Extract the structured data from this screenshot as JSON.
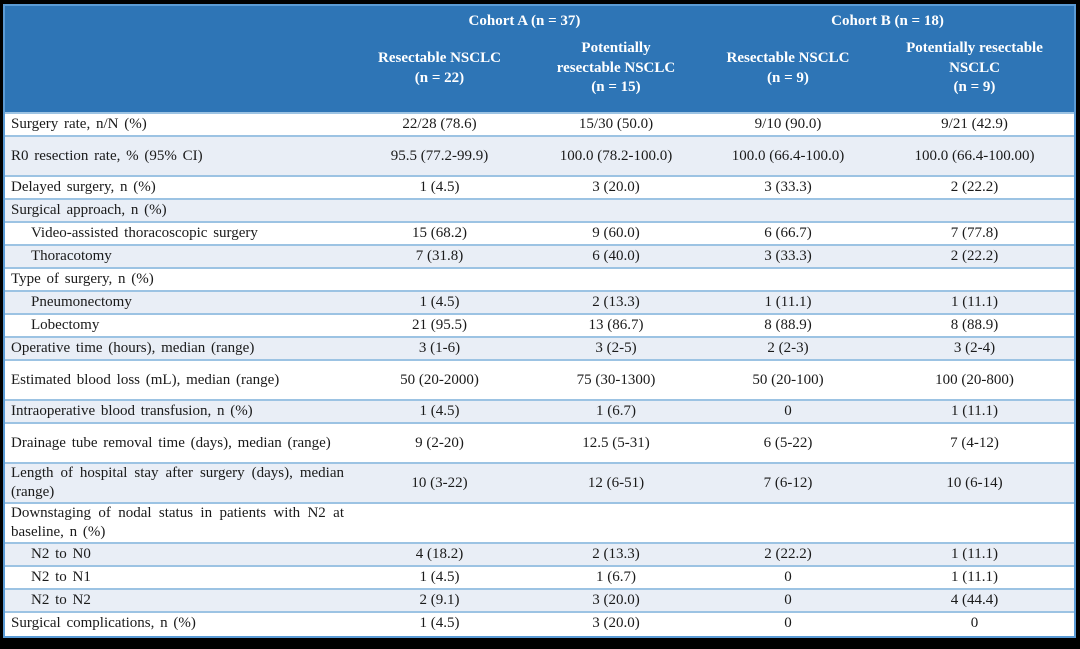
{
  "colors": {
    "header_bg": "#2E75B6",
    "header_text": "#FFFFFF",
    "row_shaded_bg": "#E9EEF6",
    "row_border": "#9CC3E3",
    "outer_border": "#5B9BD5",
    "page_frame": "#000000"
  },
  "table": {
    "cohort_headers": [
      {
        "label": "Cohort A (n = 37)"
      },
      {
        "label": "Cohort B (n = 18)"
      }
    ],
    "column_headers": [
      {
        "label": "Resectable NSCLC\n(n = 22)"
      },
      {
        "label": "Potentially\nresectable NSCLC\n(n = 15)"
      },
      {
        "label": "Resectable NSCLC\n(n = 9)"
      },
      {
        "label": "Potentially resectable\nNSCLC\n(n = 9)"
      }
    ],
    "rows": [
      {
        "label": "Surgery rate, n/N (%)",
        "indent": false,
        "tall": false,
        "values": [
          "22/28 (78.6)",
          "15/30 (50.0)",
          "9/10 (90.0)",
          "9/21 (42.9)"
        ]
      },
      {
        "label": "R0 resection rate, % (95% CI)",
        "indent": false,
        "tall": true,
        "values": [
          "95.5 (77.2-99.9)",
          "100.0 (78.2-100.0)",
          "100.0 (66.4-100.0)",
          "100.0 (66.4-100.00)"
        ]
      },
      {
        "label": "Delayed surgery, n (%)",
        "indent": false,
        "tall": false,
        "values": [
          "1 (4.5)",
          "3 (20.0)",
          "3 (33.3)",
          "2 (22.2)"
        ]
      },
      {
        "label": "Surgical approach, n (%)",
        "indent": false,
        "tall": false,
        "values": [
          "",
          "",
          "",
          ""
        ]
      },
      {
        "label": "Video-assisted thoracoscopic surgery",
        "indent": true,
        "tall": false,
        "values": [
          "15 (68.2)",
          "9 (60.0)",
          "6 (66.7)",
          "7 (77.8)"
        ]
      },
      {
        "label": "Thoracotomy",
        "indent": true,
        "tall": false,
        "values": [
          "7 (31.8)",
          "6 (40.0)",
          "3 (33.3)",
          "2 (22.2)"
        ]
      },
      {
        "label": "Type of surgery, n (%)",
        "indent": false,
        "tall": false,
        "values": [
          "",
          "",
          "",
          ""
        ]
      },
      {
        "label": "Pneumonectomy",
        "indent": true,
        "tall": false,
        "values": [
          "1 (4.5)",
          "2 (13.3)",
          "1 (11.1)",
          "1 (11.1)"
        ]
      },
      {
        "label": "Lobectomy",
        "indent": true,
        "tall": false,
        "values": [
          "21 (95.5)",
          "13 (86.7)",
          "8 (88.9)",
          "8 (88.9)"
        ]
      },
      {
        "label": "Operative time (hours), median (range)",
        "indent": false,
        "tall": false,
        "values": [
          "3 (1-6)",
          "3 (2-5)",
          "2 (2-3)",
          "3 (2-4)"
        ]
      },
      {
        "label": "Estimated blood loss (mL), median (range)",
        "indent": false,
        "tall": true,
        "values": [
          "50 (20-2000)",
          "75 (30-1300)",
          "50 (20-100)",
          "100 (20-800)"
        ]
      },
      {
        "label": "Intraoperative blood transfusion, n (%)",
        "indent": false,
        "tall": false,
        "values": [
          "1 (4.5)",
          "1 (6.7)",
          "0",
          "1 (11.1)"
        ]
      },
      {
        "label": "Drainage tube removal time (days), median (range)",
        "indent": false,
        "tall": true,
        "values": [
          "9 (2-20)",
          "12.5 (5-31)",
          "6 (5-22)",
          "7 (4-12)"
        ]
      },
      {
        "label": "Length of hospital stay after surgery (days), median (range)",
        "indent": false,
        "tall": true,
        "values": [
          "10 (3-22)",
          "12 (6-51)",
          "7 (6-12)",
          "10 (6-14)"
        ]
      },
      {
        "label": "Downstaging of nodal status in patients with N2 at baseline, n (%)",
        "indent": false,
        "tall": true,
        "values": [
          "",
          "",
          "",
          ""
        ]
      },
      {
        "label": "N2 to N0",
        "indent": true,
        "tall": false,
        "values": [
          "4 (18.2)",
          "2 (13.3)",
          "2 (22.2)",
          "1 (11.1)"
        ]
      },
      {
        "label": "N2 to N1",
        "indent": true,
        "tall": false,
        "values": [
          "1 (4.5)",
          "1 (6.7)",
          "0",
          "1 (11.1)"
        ]
      },
      {
        "label": "N2 to N2",
        "indent": true,
        "tall": false,
        "values": [
          "2 (9.1)",
          "3 (20.0)",
          "0",
          "4 (44.4)"
        ]
      },
      {
        "label": "Surgical complications, n (%)",
        "indent": false,
        "tall": false,
        "values": [
          "1 (4.5)",
          "3 (20.0)",
          "0",
          "0"
        ]
      }
    ]
  }
}
